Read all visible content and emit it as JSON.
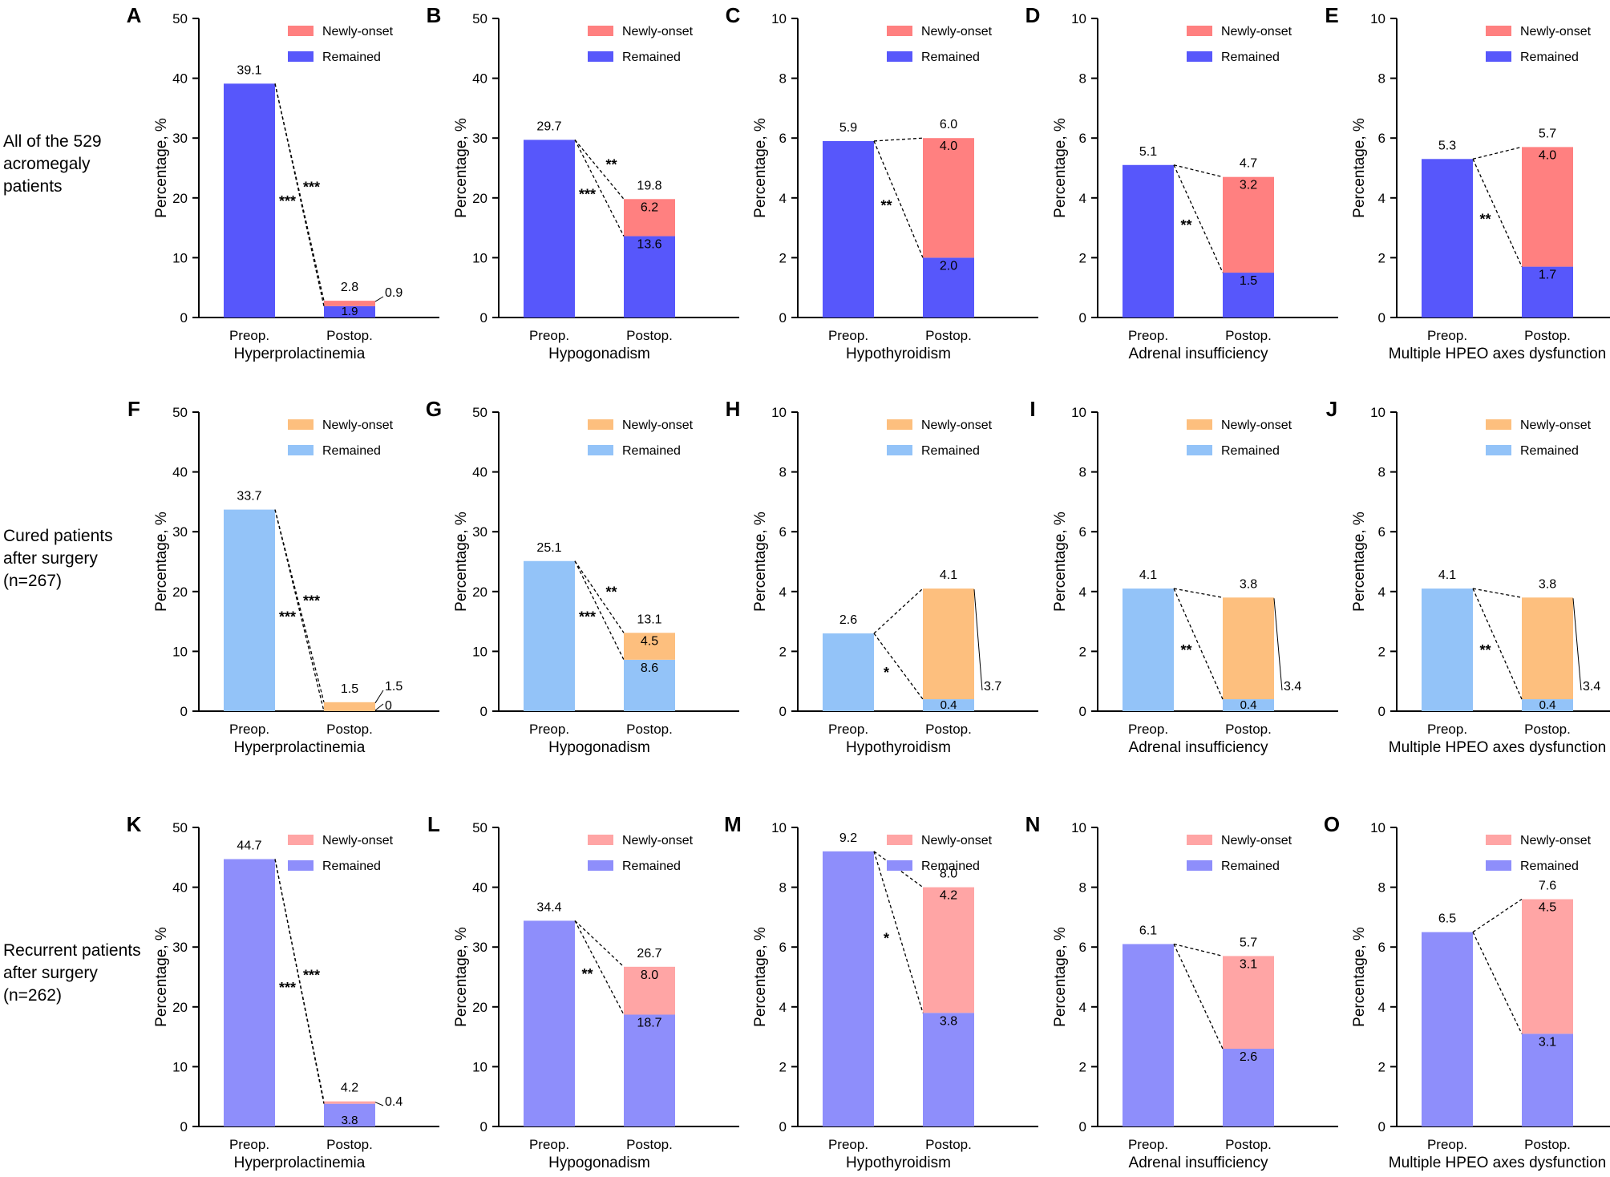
{
  "figure": {
    "row_labels": [
      [
        "All of the 529",
        "acromegaly",
        "patients"
      ],
      [
        "Cured patients",
        "after surgery",
        "(n=267)"
      ],
      [
        "Recurrent patients",
        "after surgery",
        "(n=262)"
      ]
    ],
    "row_palettes": [
      {
        "remained": "#5757FB",
        "newly": "#FF8080"
      },
      {
        "remained": "#93C3F8",
        "newly": "#FDBF7E"
      },
      {
        "remained": "#8E8EFB",
        "newly": "#FFA5A5"
      }
    ]
  },
  "chart_data": [
    {
      "panel": "A",
      "type": "bar",
      "stacked": true,
      "xlabel": "Hyperprolactinemia",
      "ylabel": "Percentage, %",
      "ylim": [
        0,
        50
      ],
      "yticks": [
        "0",
        "10",
        "20",
        "30",
        "40",
        "50"
      ],
      "categories": [
        "Preop.",
        "Postop."
      ],
      "series": [
        {
          "name": "Remained",
          "values": [
            39.1,
            1.9
          ]
        },
        {
          "name": "Newly-onset",
          "values": [
            0,
            0.9
          ]
        }
      ],
      "total_labels": [
        "39.1",
        "2.8"
      ],
      "segment_labels": {
        "remained": "1.9",
        "newly": "0.9"
      },
      "significance": {
        "upper": "***",
        "lower": "***"
      },
      "legend": [
        "Newly-onset",
        "Remained"
      ]
    },
    {
      "panel": "B",
      "type": "bar",
      "stacked": true,
      "xlabel": "Hypogonadism",
      "ylabel": "Percentage, %",
      "ylim": [
        0,
        50
      ],
      "yticks": [
        "0",
        "10",
        "20",
        "30",
        "40",
        "50"
      ],
      "categories": [
        "Preop.",
        "Postop."
      ],
      "series": [
        {
          "name": "Remained",
          "values": [
            29.7,
            13.6
          ]
        },
        {
          "name": "Newly-onset",
          "values": [
            0,
            6.2
          ]
        }
      ],
      "total_labels": [
        "29.7",
        "19.8"
      ],
      "segment_labels": {
        "remained": "13.6",
        "newly": "6.2"
      },
      "significance": {
        "upper": "**",
        "lower": "***"
      },
      "legend": [
        "Newly-onset",
        "Remained"
      ]
    },
    {
      "panel": "C",
      "type": "bar",
      "stacked": true,
      "xlabel": "Hypothyroidism",
      "ylabel": "Percentage, %",
      "ylim": [
        0,
        10
      ],
      "yticks": [
        "0",
        "2",
        "4",
        "6",
        "8",
        "10"
      ],
      "categories": [
        "Preop.",
        "Postop."
      ],
      "series": [
        {
          "name": "Remained",
          "values": [
            5.9,
            2.0
          ]
        },
        {
          "name": "Newly-onset",
          "values": [
            0,
            4.0
          ]
        }
      ],
      "total_labels": [
        "5.9",
        "6.0"
      ],
      "segment_labels": {
        "remained": "2.0",
        "newly": "4.0"
      },
      "significance": {
        "upper": "",
        "lower": "**"
      },
      "legend": [
        "Newly-onset",
        "Remained"
      ]
    },
    {
      "panel": "D",
      "type": "bar",
      "stacked": true,
      "xlabel": "Adrenal insufficiency",
      "ylabel": "Percentage, %",
      "ylim": [
        0,
        10
      ],
      "yticks": [
        "0",
        "2",
        "4",
        "6",
        "8",
        "10"
      ],
      "categories": [
        "Preop.",
        "Postop."
      ],
      "series": [
        {
          "name": "Remained",
          "values": [
            5.1,
            1.5
          ]
        },
        {
          "name": "Newly-onset",
          "values": [
            0,
            3.2
          ]
        }
      ],
      "total_labels": [
        "5.1",
        "4.7"
      ],
      "segment_labels": {
        "remained": "1.5",
        "newly": "3.2"
      },
      "significance": {
        "upper": "",
        "lower": "**"
      },
      "legend": [
        "Newly-onset",
        "Remained"
      ]
    },
    {
      "panel": "E",
      "type": "bar",
      "stacked": true,
      "xlabel": "Multiple HPEO axes dysfunction",
      "ylabel": "Percentage, %",
      "ylim": [
        0,
        10
      ],
      "yticks": [
        "0",
        "2",
        "4",
        "6",
        "8",
        "10"
      ],
      "categories": [
        "Preop.",
        "Postop."
      ],
      "series": [
        {
          "name": "Remained",
          "values": [
            5.3,
            1.7
          ]
        },
        {
          "name": "Newly-onset",
          "values": [
            0,
            4.0
          ]
        }
      ],
      "total_labels": [
        "5.3",
        "5.7"
      ],
      "segment_labels": {
        "remained": "1.7",
        "newly": "4.0"
      },
      "significance": {
        "upper": "",
        "lower": "**"
      },
      "legend": [
        "Newly-onset",
        "Remained"
      ]
    },
    {
      "panel": "F",
      "type": "bar",
      "stacked": true,
      "xlabel": "Hyperprolactinemia",
      "ylabel": "Percentage, %",
      "ylim": [
        0,
        50
      ],
      "yticks": [
        "0",
        "10",
        "20",
        "30",
        "40",
        "50"
      ],
      "categories": [
        "Preop.",
        "Postop."
      ],
      "series": [
        {
          "name": "Remained",
          "values": [
            33.7,
            0
          ]
        },
        {
          "name": "Newly-onset",
          "values": [
            0,
            1.5
          ]
        }
      ],
      "total_labels": [
        "33.7",
        "1.5"
      ],
      "segment_labels": {
        "remained": "0",
        "newly": "1.5"
      },
      "significance": {
        "upper": "***",
        "lower": "***"
      },
      "legend": [
        "Newly-onset",
        "Remained"
      ]
    },
    {
      "panel": "G",
      "type": "bar",
      "stacked": true,
      "xlabel": "Hypogonadism",
      "ylabel": "Percentage, %",
      "ylim": [
        0,
        50
      ],
      "yticks": [
        "0",
        "10",
        "20",
        "30",
        "40",
        "50"
      ],
      "categories": [
        "Preop.",
        "Postop."
      ],
      "series": [
        {
          "name": "Remained",
          "values": [
            25.1,
            8.6
          ]
        },
        {
          "name": "Newly-onset",
          "values": [
            0,
            4.5
          ]
        }
      ],
      "total_labels": [
        "25.1",
        "13.1"
      ],
      "segment_labels": {
        "remained": "8.6",
        "newly": "4.5"
      },
      "significance": {
        "upper": "**",
        "lower": "***"
      },
      "legend": [
        "Newly-onset",
        "Remained"
      ]
    },
    {
      "panel": "H",
      "type": "bar",
      "stacked": true,
      "xlabel": "Hypothyroidism",
      "ylabel": "Percentage, %",
      "ylim": [
        0,
        10
      ],
      "yticks": [
        "0",
        "2",
        "4",
        "6",
        "8",
        "10"
      ],
      "categories": [
        "Preop.",
        "Postop."
      ],
      "series": [
        {
          "name": "Remained",
          "values": [
            2.6,
            0.4
          ]
        },
        {
          "name": "Newly-onset",
          "values": [
            0,
            3.7
          ]
        }
      ],
      "total_labels": [
        "2.6",
        "4.1"
      ],
      "segment_labels": {
        "remained": "0.4",
        "newly": "3.7"
      },
      "significance": {
        "upper": "",
        "lower": "*"
      },
      "legend": [
        "Newly-onset",
        "Remained"
      ]
    },
    {
      "panel": "I",
      "type": "bar",
      "stacked": true,
      "xlabel": "Adrenal insufficiency",
      "ylabel": "Percentage, %",
      "ylim": [
        0,
        10
      ],
      "yticks": [
        "0",
        "2",
        "4",
        "6",
        "8",
        "10"
      ],
      "categories": [
        "Preop.",
        "Postop."
      ],
      "series": [
        {
          "name": "Remained",
          "values": [
            4.1,
            0.4
          ]
        },
        {
          "name": "Newly-onset",
          "values": [
            0,
            3.4
          ]
        }
      ],
      "total_labels": [
        "4.1",
        "3.8"
      ],
      "segment_labels": {
        "remained": "0.4",
        "newly": "3.4"
      },
      "significance": {
        "upper": "",
        "lower": "**"
      },
      "legend": [
        "Newly-onset",
        "Remained"
      ]
    },
    {
      "panel": "J",
      "type": "bar",
      "stacked": true,
      "xlabel": "Multiple HPEO axes dysfunction",
      "ylabel": "Percentage, %",
      "ylim": [
        0,
        10
      ],
      "yticks": [
        "0",
        "2",
        "4",
        "6",
        "8",
        "10"
      ],
      "categories": [
        "Preop.",
        "Postop."
      ],
      "series": [
        {
          "name": "Remained",
          "values": [
            4.1,
            0.4
          ]
        },
        {
          "name": "Newly-onset",
          "values": [
            0,
            3.4
          ]
        }
      ],
      "total_labels": [
        "4.1",
        "3.8"
      ],
      "segment_labels": {
        "remained": "0.4",
        "newly": "3.4"
      },
      "significance": {
        "upper": "",
        "lower": "**"
      },
      "legend": [
        "Newly-onset",
        "Remained"
      ]
    },
    {
      "panel": "K",
      "type": "bar",
      "stacked": true,
      "xlabel": "Hyperprolactinemia",
      "ylabel": "Percentage, %",
      "ylim": [
        0,
        50
      ],
      "yticks": [
        "0",
        "10",
        "20",
        "30",
        "40",
        "50"
      ],
      "categories": [
        "Preop.",
        "Postop."
      ],
      "series": [
        {
          "name": "Remained",
          "values": [
            44.7,
            3.8
          ]
        },
        {
          "name": "Newly-onset",
          "values": [
            0,
            0.4
          ]
        }
      ],
      "total_labels": [
        "44.7",
        "4.2"
      ],
      "segment_labels": {
        "remained": "3.8",
        "newly": "0.4"
      },
      "significance": {
        "upper": "***",
        "lower": "***"
      },
      "legend": [
        "Newly-onset",
        "Remained"
      ]
    },
    {
      "panel": "L",
      "type": "bar",
      "stacked": true,
      "xlabel": "Hypogonadism",
      "ylabel": "Percentage, %",
      "ylim": [
        0,
        50
      ],
      "yticks": [
        "0",
        "10",
        "20",
        "30",
        "40",
        "50"
      ],
      "categories": [
        "Preop.",
        "Postop."
      ],
      "series": [
        {
          "name": "Remained",
          "values": [
            34.4,
            18.7
          ]
        },
        {
          "name": "Newly-onset",
          "values": [
            0,
            8.0
          ]
        }
      ],
      "total_labels": [
        "34.4",
        "26.7"
      ],
      "segment_labels": {
        "remained": "18.7",
        "newly": "8.0"
      },
      "significance": {
        "upper": "",
        "lower": "**"
      },
      "legend": [
        "Newly-onset",
        "Remained"
      ]
    },
    {
      "panel": "M",
      "type": "bar",
      "stacked": true,
      "xlabel": "Hypothyroidism",
      "ylabel": "Percentage, %",
      "ylim": [
        0,
        10
      ],
      "yticks": [
        "0",
        "2",
        "4",
        "6",
        "8",
        "10"
      ],
      "categories": [
        "Preop.",
        "Postop."
      ],
      "series": [
        {
          "name": "Remained",
          "values": [
            9.2,
            3.8
          ]
        },
        {
          "name": "Newly-onset",
          "values": [
            0,
            4.2
          ]
        }
      ],
      "total_labels": [
        "9.2",
        "8.0"
      ],
      "segment_labels": {
        "remained": "3.8",
        "newly": "4.2"
      },
      "significance": {
        "upper": "",
        "lower": "*"
      },
      "legend": [
        "Newly-onset",
        "Remained"
      ]
    },
    {
      "panel": "N",
      "type": "bar",
      "stacked": true,
      "xlabel": "Adrenal insufficiency",
      "ylabel": "Percentage, %",
      "ylim": [
        0,
        10
      ],
      "yticks": [
        "0",
        "2",
        "4",
        "6",
        "8",
        "10"
      ],
      "categories": [
        "Preop.",
        "Postop."
      ],
      "series": [
        {
          "name": "Remained",
          "values": [
            6.1,
            2.6
          ]
        },
        {
          "name": "Newly-onset",
          "values": [
            0,
            3.1
          ]
        }
      ],
      "total_labels": [
        "6.1",
        "5.7"
      ],
      "segment_labels": {
        "remained": "2.6",
        "newly": "3.1"
      },
      "significance": {
        "upper": "",
        "lower": ""
      },
      "legend": [
        "Newly-onset",
        "Remained"
      ]
    },
    {
      "panel": "O",
      "type": "bar",
      "stacked": true,
      "xlabel": "Multiple HPEO axes dysfunction",
      "ylabel": "Percentage, %",
      "ylim": [
        0,
        10
      ],
      "yticks": [
        "0",
        "2",
        "4",
        "6",
        "8",
        "10"
      ],
      "categories": [
        "Preop.",
        "Postop."
      ],
      "series": [
        {
          "name": "Remained",
          "values": [
            6.5,
            3.1
          ]
        },
        {
          "name": "Newly-onset",
          "values": [
            0,
            4.5
          ]
        }
      ],
      "total_labels": [
        "6.5",
        "7.6"
      ],
      "segment_labels": {
        "remained": "3.1",
        "newly": "4.5"
      },
      "significance": {
        "upper": "",
        "lower": ""
      },
      "legend": [
        "Newly-onset",
        "Remained"
      ]
    }
  ]
}
